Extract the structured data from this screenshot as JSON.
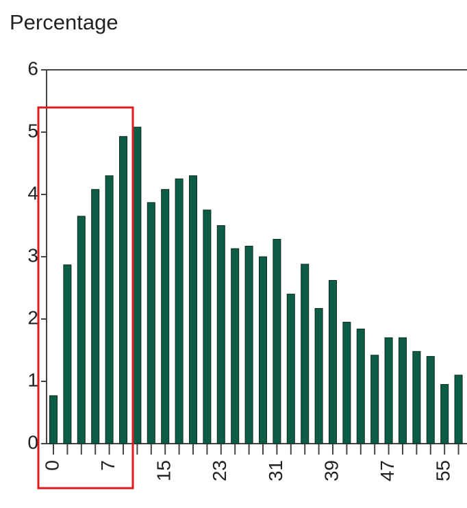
{
  "chart_data": {
    "type": "bar",
    "y_label": "Percentage",
    "categories": [
      "0",
      null,
      null,
      null,
      "7",
      null,
      null,
      null,
      "15",
      null,
      null,
      null,
      "23",
      null,
      null,
      null,
      "31",
      null,
      null,
      null,
      "39",
      null,
      null,
      null,
      "47",
      null,
      null,
      null,
      "55",
      null
    ],
    "values": [
      0.77,
      2.87,
      3.65,
      4.08,
      4.3,
      4.93,
      5.08,
      3.87,
      4.08,
      4.25,
      4.3,
      3.75,
      3.5,
      3.13,
      3.17,
      3.0,
      3.28,
      2.4,
      2.88,
      2.17,
      2.62,
      1.95,
      1.84,
      1.42,
      1.7,
      1.7,
      1.48,
      1.4,
      0.95,
      1.1
    ],
    "color": "#0d5c45",
    "ylim": [
      0,
      6
    ],
    "yticks": [
      0,
      1,
      2,
      3,
      4,
      5,
      6
    ]
  }
}
